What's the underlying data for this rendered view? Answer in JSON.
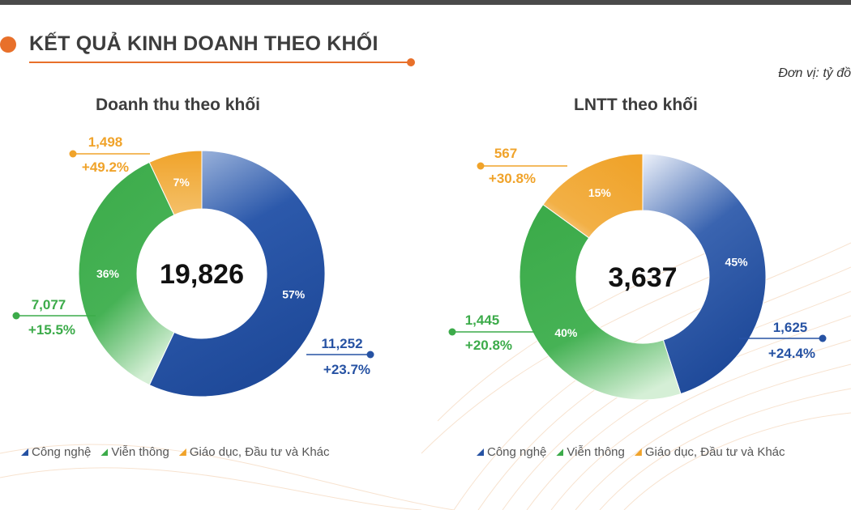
{
  "header": {
    "title": "KẾT QUẢ KINH DOANH THEO KHỐI",
    "unit": "Đơn vị: tỷ đồ"
  },
  "colors": {
    "blue": "#2652a3",
    "green": "#3cab4a",
    "orange": "#f0a32a",
    "accent": "#e8702a"
  },
  "chart_data": [
    {
      "type": "pie",
      "title": "Doanh thu theo khối",
      "total": "19,826",
      "slices": [
        {
          "key": "blue",
          "label": "Công nghệ",
          "pct": 57,
          "pct_label": "57%",
          "value": "11,252",
          "growth": "+23.7%"
        },
        {
          "key": "green",
          "label": "Viễn thông",
          "pct": 36,
          "pct_label": "36%",
          "value": "7,077",
          "growth": "+15.5%"
        },
        {
          "key": "orange",
          "label": "Giáo dục, Đầu tư và Khác",
          "pct": 7,
          "pct_label": "7%",
          "value": "1,498",
          "growth": "+49.2%"
        }
      ],
      "legend": [
        "Công nghệ",
        "Viễn thông",
        "Giáo dục, Đầu tư và Khác"
      ]
    },
    {
      "type": "pie",
      "title": "LNTT theo khối",
      "total": "3,637",
      "slices": [
        {
          "key": "blue",
          "label": "Công nghệ",
          "pct": 45,
          "pct_label": "45%",
          "value": "1,625",
          "growth": "+24.4%"
        },
        {
          "key": "green",
          "label": "Viễn thông",
          "pct": 40,
          "pct_label": "40%",
          "value": "1,445",
          "growth": "+20.8%"
        },
        {
          "key": "orange",
          "label": "Giáo dục, Đầu tư và Khác",
          "pct": 15,
          "pct_label": "15%",
          "value": "567",
          "growth": "+30.8%"
        }
      ],
      "legend": [
        "Công nghệ",
        "Viễn thông",
        "Giáo dục, Đầu tư và Khác"
      ]
    }
  ]
}
